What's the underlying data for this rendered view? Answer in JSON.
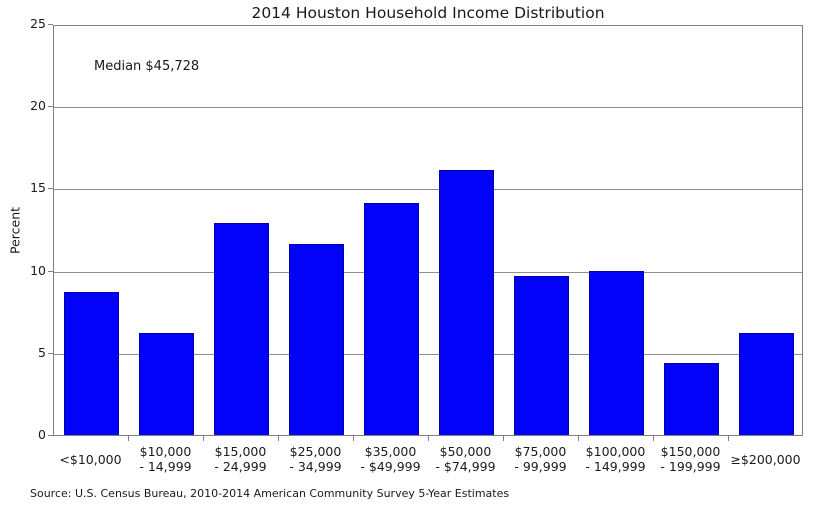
{
  "figure": {
    "title": "2014 Houston Household Income Distribution",
    "annotation": "Median $45,728",
    "source": "Source: U.S. Census Bureau, 2010-2014 American Community Survey 5-Year Estimates"
  },
  "colors": {
    "bar_fill": "#0202f8",
    "bar_edge": "#0000a8",
    "axis_frame": "#7f7f7f",
    "gridline": "#8f8f8f",
    "text": "#1a1a1a"
  },
  "chart_data": {
    "type": "bar",
    "title": "2014 Houston Household Income Distribution",
    "xlabel": "",
    "ylabel": "Percent",
    "ylim": [
      0,
      25
    ],
    "yticks": [
      0,
      5,
      10,
      15,
      20,
      25
    ],
    "grid": "horizontal gridlines at yticks, frame box around plot",
    "legend": "none",
    "annotation": "Median $45,728",
    "categories": [
      "<$10,000",
      "$10,000 - 14,999",
      "$15,000 - 24,999",
      "$25,000 - 34,999",
      "$35,000 - $49,999",
      "$50,000 - $74,999",
      "$75,000 - 99,999",
      "$100,000 - 149,999",
      "$150,000 - 199,999",
      "≥$200,000"
    ],
    "category_label_lines": [
      [
        "<$10,000"
      ],
      [
        "$10,000",
        "- 14,999"
      ],
      [
        "$15,000",
        "- 24,999"
      ],
      [
        "$25,000",
        "- 34,999"
      ],
      [
        "$35,000",
        "- $49,999"
      ],
      [
        "$50,000",
        "- $74,999"
      ],
      [
        "$75,000",
        "- 99,999"
      ],
      [
        "$100,000",
        "- 149,999"
      ],
      [
        "$150,000",
        "- 199,999"
      ],
      [
        "≥$200,000"
      ]
    ],
    "values": [
      8.7,
      6.2,
      12.9,
      11.6,
      14.1,
      16.1,
      9.7,
      10.0,
      4.4,
      6.2
    ],
    "source": "Source: U.S. Census Bureau, 2010-2014 American Community Survey 5-Year Estimates"
  }
}
